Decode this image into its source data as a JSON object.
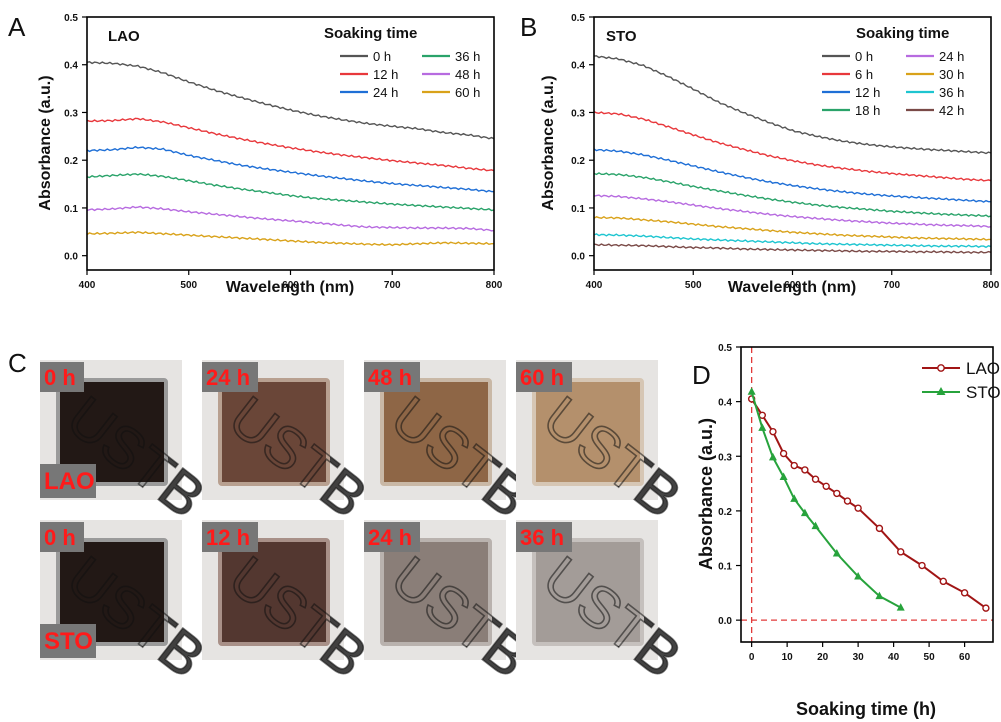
{
  "panels": {
    "A": {
      "letter": "A"
    },
    "B": {
      "letter": "B"
    },
    "C": {
      "letter": "C"
    },
    "D": {
      "letter": "D"
    }
  },
  "colors": {
    "black": "#555555",
    "red": "#e8383c",
    "blue": "#1f6fd6",
    "green": "#2aa36a",
    "purple": "#b76be0",
    "orange": "#d9a21a",
    "cyan": "#1ec5d0",
    "brown": "#7a4a47",
    "lao_marker": "#a11515",
    "sto_marker": "#27a33c",
    "photo_dark": "#221815",
    "label_text": "#ff1a1a",
    "label_bg": "#777777"
  },
  "chart_data": [
    {
      "panel": "A",
      "type": "line",
      "inset_label": "LAO",
      "xlabel": "Wavelength (nm)",
      "ylabel": "Absorbance (a.u.)",
      "xlim": [
        400,
        800
      ],
      "ylim": [
        -0.03,
        0.5
      ],
      "xticks": [
        "400",
        "500",
        "600",
        "700",
        "800"
      ],
      "yticks": [
        "0.0",
        "0.1",
        "0.2",
        "0.3",
        "0.4",
        "0.5"
      ],
      "legend_title": "Soaking time",
      "legend_columns": 2,
      "legend_placement": "top-right",
      "grid": false,
      "x": [
        400,
        425,
        450,
        475,
        500,
        525,
        550,
        575,
        600,
        625,
        650,
        675,
        700,
        725,
        750,
        775,
        800
      ],
      "series": [
        {
          "name": "0 h",
          "color": "black",
          "values": [
            0.405,
            0.403,
            0.397,
            0.383,
            0.364,
            0.347,
            0.332,
            0.318,
            0.305,
            0.294,
            0.285,
            0.277,
            0.271,
            0.266,
            0.258,
            0.253,
            0.245
          ]
        },
        {
          "name": "12 h",
          "color": "red",
          "values": [
            0.282,
            0.283,
            0.287,
            0.28,
            0.268,
            0.256,
            0.245,
            0.235,
            0.226,
            0.218,
            0.211,
            0.205,
            0.199,
            0.194,
            0.189,
            0.183,
            0.178
          ]
        },
        {
          "name": "24 h",
          "color": "blue",
          "values": [
            0.22,
            0.222,
            0.227,
            0.223,
            0.21,
            0.2,
            0.19,
            0.182,
            0.175,
            0.168,
            0.162,
            0.156,
            0.151,
            0.147,
            0.143,
            0.139,
            0.134
          ]
        },
        {
          "name": "36 h",
          "color": "green",
          "values": [
            0.165,
            0.168,
            0.171,
            0.166,
            0.157,
            0.148,
            0.14,
            0.133,
            0.126,
            0.12,
            0.116,
            0.112,
            0.108,
            0.105,
            0.102,
            0.099,
            0.096
          ]
        },
        {
          "name": "48 h",
          "color": "purple",
          "values": [
            0.096,
            0.098,
            0.102,
            0.098,
            0.092,
            0.087,
            0.082,
            0.077,
            0.073,
            0.069,
            0.064,
            0.06,
            0.059,
            0.058,
            0.058,
            0.057,
            0.053
          ]
        },
        {
          "name": "60 h",
          "color": "orange",
          "values": [
            0.046,
            0.047,
            0.049,
            0.046,
            0.043,
            0.04,
            0.037,
            0.034,
            0.031,
            0.028,
            0.026,
            0.024,
            0.023,
            0.025,
            0.027,
            0.026,
            0.025
          ]
        }
      ]
    },
    {
      "panel": "B",
      "type": "line",
      "inset_label": "STO",
      "xlabel": "Wavelength (nm)",
      "ylabel": "Absorbance (a.u.)",
      "xlim": [
        400,
        800
      ],
      "ylim": [
        -0.03,
        0.5
      ],
      "xticks": [
        "400",
        "500",
        "600",
        "700",
        "800"
      ],
      "yticks": [
        "0.0",
        "0.1",
        "0.2",
        "0.3",
        "0.4",
        "0.5"
      ],
      "legend_title": "Soaking time",
      "legend_columns": 2,
      "legend_placement": "top-right",
      "grid": false,
      "x": [
        400,
        425,
        450,
        475,
        500,
        525,
        550,
        575,
        600,
        625,
        650,
        675,
        700,
        725,
        750,
        775,
        800
      ],
      "series": [
        {
          "name": "0 h",
          "color": "black",
          "values": [
            0.418,
            0.412,
            0.398,
            0.375,
            0.349,
            0.322,
            0.3,
            0.28,
            0.262,
            0.25,
            0.24,
            0.233,
            0.228,
            0.224,
            0.221,
            0.218,
            0.215
          ]
        },
        {
          "name": "6 h",
          "color": "red",
          "values": [
            0.3,
            0.297,
            0.286,
            0.27,
            0.253,
            0.237,
            0.223,
            0.21,
            0.199,
            0.19,
            0.183,
            0.177,
            0.172,
            0.168,
            0.164,
            0.16,
            0.157
          ]
        },
        {
          "name": "12 h",
          "color": "blue",
          "values": [
            0.222,
            0.219,
            0.211,
            0.2,
            0.188,
            0.176,
            0.165,
            0.155,
            0.147,
            0.14,
            0.134,
            0.129,
            0.125,
            0.122,
            0.119,
            0.116,
            0.113
          ]
        },
        {
          "name": "18 h",
          "color": "green",
          "values": [
            0.172,
            0.17,
            0.164,
            0.155,
            0.145,
            0.136,
            0.127,
            0.119,
            0.112,
            0.106,
            0.101,
            0.097,
            0.093,
            0.09,
            0.087,
            0.085,
            0.083
          ]
        },
        {
          "name": "24 h",
          "color": "purple",
          "values": [
            0.126,
            0.124,
            0.119,
            0.113,
            0.106,
            0.099,
            0.093,
            0.087,
            0.082,
            0.078,
            0.074,
            0.071,
            0.068,
            0.066,
            0.064,
            0.063,
            0.061
          ]
        },
        {
          "name": "30 h",
          "color": "orange",
          "values": [
            0.08,
            0.079,
            0.075,
            0.071,
            0.066,
            0.061,
            0.057,
            0.053,
            0.049,
            0.046,
            0.043,
            0.041,
            0.039,
            0.037,
            0.036,
            0.035,
            0.034
          ]
        },
        {
          "name": "36 h",
          "color": "cyan",
          "values": [
            0.044,
            0.043,
            0.041,
            0.038,
            0.035,
            0.033,
            0.031,
            0.029,
            0.027,
            0.025,
            0.024,
            0.023,
            0.022,
            0.021,
            0.02,
            0.02,
            0.019
          ]
        },
        {
          "name": "42 h",
          "color": "brown",
          "values": [
            0.023,
            0.022,
            0.021,
            0.019,
            0.017,
            0.016,
            0.014,
            0.013,
            0.012,
            0.011,
            0.01,
            0.009,
            0.009,
            0.008,
            0.008,
            0.007,
            0.007
          ]
        }
      ]
    },
    {
      "panel": "D",
      "type": "line",
      "xlabel": "Soaking time (h)",
      "ylabel": "Absorbance (a.u.)",
      "xlim": [
        -3,
        68
      ],
      "ylim": [
        -0.04,
        0.5
      ],
      "xticks": [
        "0",
        "10",
        "20",
        "30",
        "40",
        "50",
        "60"
      ],
      "yticks": [
        "0.0",
        "0.1",
        "0.2",
        "0.3",
        "0.4",
        "0.5"
      ],
      "legend_placement": "top-right",
      "grid": false,
      "reference_lines": {
        "x": 0,
        "y": 0,
        "style": "dashed",
        "color": "#e23a3a"
      },
      "series": [
        {
          "name": "LAO",
          "color": "lao_marker",
          "marker": "circle",
          "x": [
            0,
            3,
            6,
            9,
            12,
            15,
            18,
            21,
            24,
            27,
            30,
            36,
            42,
            48,
            54,
            60,
            66
          ],
          "y": [
            0.405,
            0.375,
            0.345,
            0.305,
            0.283,
            0.275,
            0.258,
            0.245,
            0.232,
            0.218,
            0.205,
            0.168,
            0.125,
            0.1,
            0.071,
            0.05,
            0.022
          ]
        },
        {
          "name": "STO",
          "color": "sto_marker",
          "marker": "triangle",
          "x": [
            0,
            3,
            6,
            9,
            12,
            15,
            18,
            24,
            30,
            36,
            42
          ],
          "y": [
            0.418,
            0.352,
            0.298,
            0.262,
            0.222,
            0.196,
            0.172,
            0.122,
            0.08,
            0.044,
            0.023
          ]
        }
      ]
    }
  ],
  "photos": {
    "rows": [
      {
        "sample": "LAO",
        "tiles": [
          {
            "label": "0 h",
            "fill": "#221815",
            "frame": "#9a9a9a"
          },
          {
            "label": "24 h",
            "fill": "#6a4638",
            "frame": "#b8a090"
          },
          {
            "label": "48 h",
            "fill": "#8e6646",
            "frame": "#c9b8a6"
          },
          {
            "label": "60 h",
            "fill": "#b4906c",
            "frame": "#d6c6b4"
          }
        ]
      },
      {
        "sample": "STO",
        "tiles": [
          {
            "label": "0 h",
            "fill": "#221815",
            "frame": "#9a9a9a"
          },
          {
            "label": "12 h",
            "fill": "#533730",
            "frame": "#a89088"
          },
          {
            "label": "24 h",
            "fill": "#8a7e78",
            "frame": "#b9b2ae"
          },
          {
            "label": "36 h",
            "fill": "#a39c98",
            "frame": "#c5c0bd"
          }
        ]
      }
    ],
    "watermark": "USTB"
  }
}
